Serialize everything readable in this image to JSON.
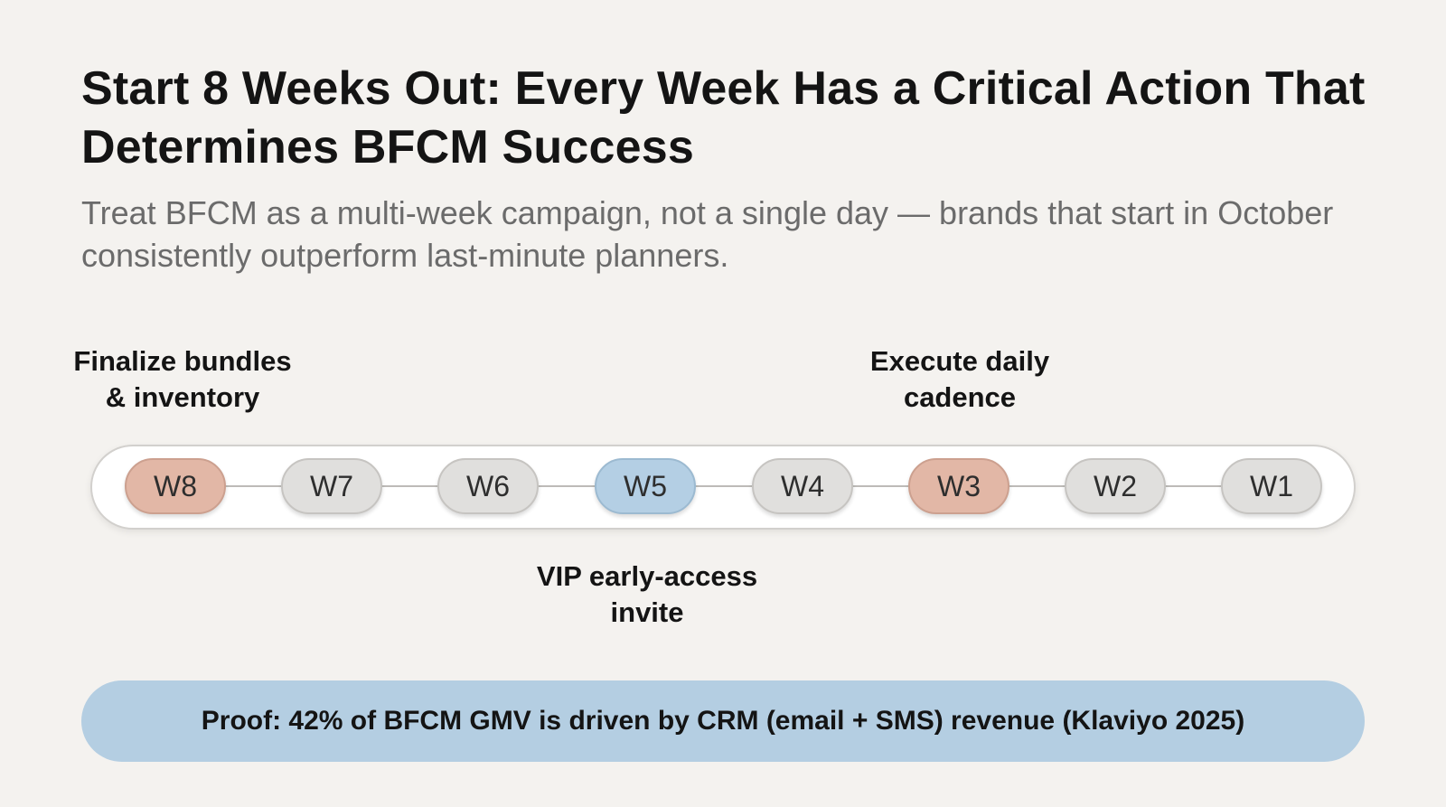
{
  "title": "Start 8 Weeks Out: Every Week Has a Critical Action That Determines BFCM Success",
  "subtitle": "Treat BFCM as a multi-week campaign, not a single day — brands that start in October consistently outperform last-minute planners.",
  "callouts": {
    "w8": {
      "line1": "Finalize bundles",
      "line2": "& inventory"
    },
    "w3": {
      "line1": "Execute daily",
      "line2": "cadence"
    },
    "w5": {
      "line1": "VIP early-access",
      "line2": "invite"
    }
  },
  "timeline": {
    "weeks": [
      {
        "label": "W8",
        "state": "highlight-red"
      },
      {
        "label": "W7",
        "state": "default"
      },
      {
        "label": "W6",
        "state": "default"
      },
      {
        "label": "W5",
        "state": "highlight-blue"
      },
      {
        "label": "W4",
        "state": "default"
      },
      {
        "label": "W3",
        "state": "highlight-red"
      },
      {
        "label": "W2",
        "state": "default"
      },
      {
        "label": "W1",
        "state": "default"
      }
    ]
  },
  "colors": {
    "highlight_red": "#e2b7a6",
    "highlight_blue": "#b4cfe4",
    "default_node": "#e0dfdd",
    "proof_bg": "#b4cee2",
    "background": "#f4f2ef"
  },
  "proof": "Proof: 42% of BFCM GMV is driven by CRM (email + SMS) revenue (Klaviyo 2025)"
}
